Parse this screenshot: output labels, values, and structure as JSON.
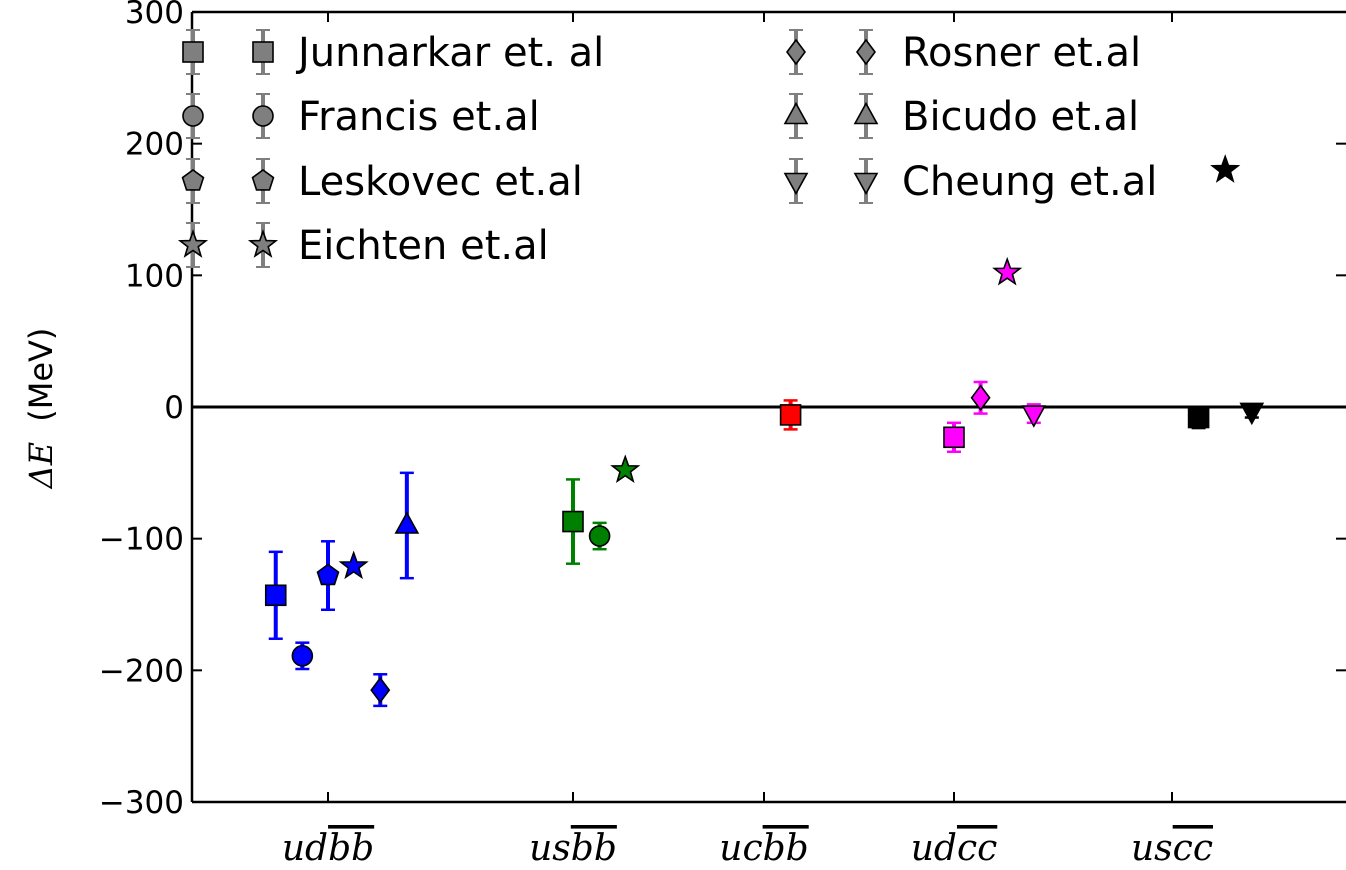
{
  "chart_data": {
    "type": "scatter",
    "ylabel_quantity": "ΔE",
    "ylabel_unit": "(MeV)",
    "ylim": [
      -300,
      300
    ],
    "yticks": [
      -300,
      -200,
      -100,
      0,
      100,
      200,
      300
    ],
    "ytick_labels": [
      "−300",
      "−200",
      "−100",
      "0",
      "100",
      "200",
      "300"
    ],
    "grid": false,
    "reference_line_y": 0,
    "legend_position": "top",
    "categories": [
      {
        "id": "udbb",
        "base": "ud",
        "bar": "b"
      },
      {
        "id": "usbb",
        "base": "us",
        "bar": "b"
      },
      {
        "id": "ucbb",
        "base": "uc",
        "bar": "b"
      },
      {
        "id": "udcc",
        "base": "ud",
        "bar": "c"
      },
      {
        "id": "uscc",
        "base": "us",
        "bar": "c"
      }
    ],
    "category_colors": {
      "udbb": "#0000ff",
      "usbb": "#008000",
      "ucbb": "#ff0000",
      "udcc": "#ff00ff",
      "uscc": "#000000"
    },
    "legend_color": "#7f7f7f",
    "series": [
      {
        "name": "Junnarkar et. al",
        "marker": "square",
        "points": [
          {
            "category": "udbb",
            "offset": -0.55,
            "y": -143,
            "err": 33
          },
          {
            "category": "usbb",
            "offset": 0.0,
            "y": -87,
            "err": 32
          },
          {
            "category": "ucbb",
            "offset": 0.28,
            "y": -6,
            "err": 11
          },
          {
            "category": "udcc",
            "offset": 0.0,
            "y": -23,
            "err": 11
          },
          {
            "category": "uscc",
            "offset": 0.28,
            "y": -8,
            "err": 8
          }
        ]
      },
      {
        "name": "Francis et.al",
        "marker": "circle",
        "points": [
          {
            "category": "udbb",
            "offset": -0.27,
            "y": -189,
            "err": 10
          },
          {
            "category": "usbb",
            "offset": 0.28,
            "y": -98,
            "err": 10
          }
        ]
      },
      {
        "name": "Leskovec et.al",
        "marker": "pentagon",
        "points": [
          {
            "category": "udbb",
            "offset": 0.0,
            "y": -128,
            "err": 26
          }
        ]
      },
      {
        "name": "Eichten et.al",
        "marker": "star",
        "points": [
          {
            "category": "udbb",
            "offset": 0.27,
            "y": -121,
            "err": 0
          },
          {
            "category": "usbb",
            "offset": 0.55,
            "y": -48,
            "err": 0
          },
          {
            "category": "udcc",
            "offset": 0.56,
            "y": 102,
            "err": 0
          },
          {
            "category": "uscc",
            "offset": 0.56,
            "y": 180,
            "err": 0
          }
        ]
      },
      {
        "name": "Rosner et.al",
        "marker": "diamond",
        "points": [
          {
            "category": "udbb",
            "offset": 0.55,
            "y": -215,
            "err": 12
          },
          {
            "category": "udcc",
            "offset": 0.28,
            "y": 7,
            "err": 12
          }
        ]
      },
      {
        "name": "Bicudo et.al",
        "marker": "triangle-up",
        "points": [
          {
            "category": "udbb",
            "offset": 0.83,
            "y": -90,
            "err": 40
          }
        ]
      },
      {
        "name": "Cheung et.al",
        "marker": "triangle-down",
        "points": [
          {
            "category": "udcc",
            "offset": 0.84,
            "y": -5,
            "err": 7
          },
          {
            "category": "uscc",
            "offset": 0.84,
            "y": -3,
            "err": 5
          }
        ]
      }
    ]
  }
}
